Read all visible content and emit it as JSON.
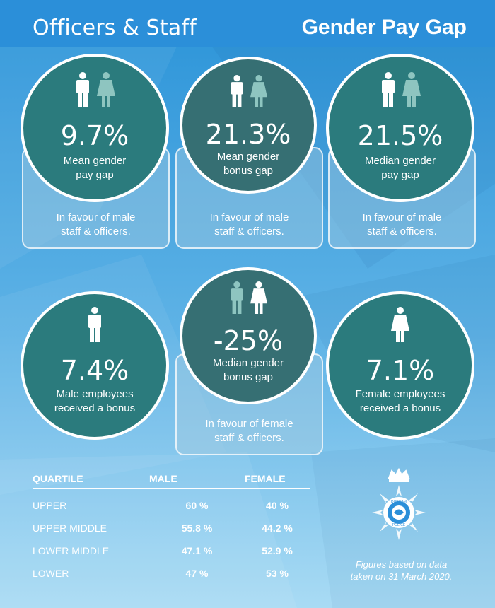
{
  "header": {
    "left_title": "Officers & Staff",
    "right_title": "Gender Pay Gap"
  },
  "stats": [
    {
      "value": "9.7%",
      "label_line1": "Mean gender",
      "label_line2": "pay gap",
      "note_line1": "In favour of male",
      "note_line2": "staff & officers.",
      "icon": "male-female-icon"
    },
    {
      "value": "21.3%",
      "label_line1": "Mean gender",
      "label_line2": "bonus gap",
      "note_line1": "In favour of male",
      "note_line2": "staff & officers.",
      "icon": "male-female-icon"
    },
    {
      "value": "21.5%",
      "label_line1": "Median gender",
      "label_line2": "pay gap",
      "note_line1": "In favour of male",
      "note_line2": "staff & officers.",
      "icon": "male-female-icon"
    },
    {
      "value": "7.4%",
      "label_line1": "Male employees",
      "label_line2": "received a bonus",
      "icon": "male-icon"
    },
    {
      "value": "-25%",
      "label_line1": "Median gender",
      "label_line2": "bonus gap",
      "note_line1": "In favour of female",
      "note_line2": "staff & officers.",
      "icon": "male-female-icon"
    },
    {
      "value": "7.1%",
      "label_line1": "Female employees",
      "label_line2": "received a bonus",
      "icon": "female-icon"
    }
  ],
  "quartiles": {
    "headers": [
      "QUARTILE",
      "MALE",
      "FEMALE"
    ],
    "rows": [
      {
        "quartile": "UPPER",
        "male": "60 %",
        "female": "40 %"
      },
      {
        "quartile": "UPPER MIDDLE",
        "male": "55.8 %",
        "female": "44.2 %"
      },
      {
        "quartile": "LOWER MIDDLE",
        "male": "47.1 %",
        "female": "52.9 %"
      },
      {
        "quartile": "LOWER",
        "male": "47 %",
        "female": "53 %"
      }
    ]
  },
  "footnote": {
    "line1": "Figures based on data",
    "line2": "taken on 31 March 2020."
  },
  "badge": {
    "icon": "police-star-badge-icon",
    "ring_text_top": "DURHAM",
    "ring_text_bottom": "POLICE"
  },
  "colors": {
    "background_top": "#1f8ed6",
    "background_bottom": "#a9dbf4",
    "circle_fill": "#2b7b7d",
    "circle_fill_dark": "#366f73",
    "male_icon": "#ffffff",
    "female_icon_muted": "#8ec5c0"
  }
}
